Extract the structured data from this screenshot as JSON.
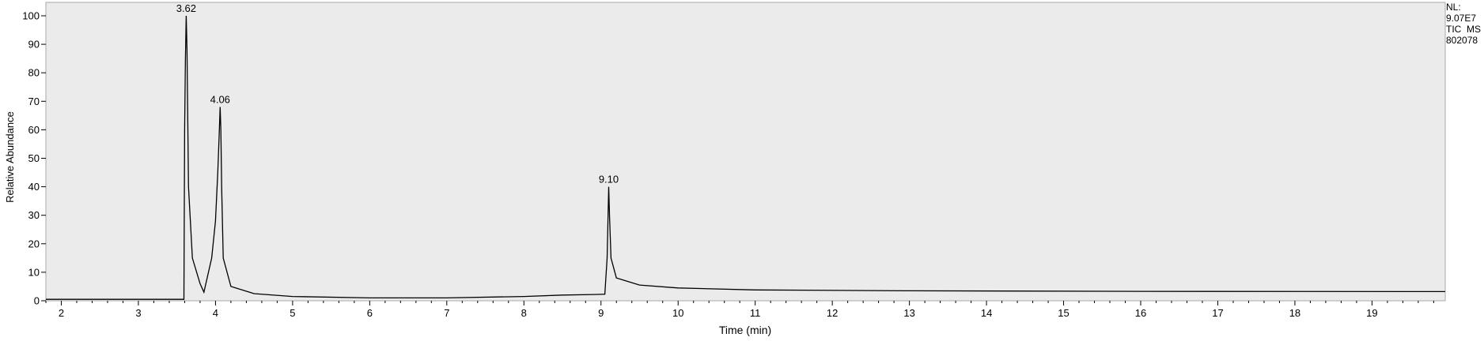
{
  "chart_data": {
    "type": "line",
    "title": "",
    "xlabel": "Time (min)",
    "ylabel": "Relative Abundance",
    "xlim": [
      1.8,
      19.95
    ],
    "ylim": [
      0,
      100
    ],
    "xticks": [
      2,
      3,
      4,
      5,
      6,
      7,
      8,
      9,
      10,
      11,
      12,
      13,
      14,
      15,
      16,
      17,
      18,
      19
    ],
    "yticks": [
      0,
      10,
      20,
      30,
      40,
      50,
      60,
      70,
      80,
      90,
      100
    ],
    "grid": false,
    "legend": "none",
    "line_color": "#000000",
    "background_color": "#ebebeb",
    "series": [
      {
        "x": [
          1.8,
          3.2,
          3.59,
          3.6,
          3.61,
          3.62,
          3.63,
          3.65,
          3.7,
          3.8,
          3.85,
          3.9,
          3.95,
          4.0,
          4.03,
          4.05,
          4.06,
          4.07,
          4.08,
          4.1,
          4.2,
          4.5,
          5.0,
          6.0,
          7.0,
          8.0,
          8.5,
          8.9,
          9.05,
          9.08,
          9.1,
          9.11,
          9.13,
          9.2,
          9.5,
          10.0,
          11.0,
          13.0,
          16.0,
          19.95
        ],
        "y": [
          0.5,
          0.5,
          0.5,
          60,
          85,
          100,
          88,
          40,
          15,
          6,
          3,
          9,
          15,
          28,
          45,
          60,
          68,
          60,
          40,
          15,
          5,
          2.5,
          1.5,
          1,
          1,
          1.5,
          2,
          2.2,
          2.3,
          15,
          40,
          30,
          15,
          8,
          5.5,
          4.5,
          3.8,
          3.5,
          3.3,
          3.2
        ]
      }
    ],
    "annotations": [
      {
        "x": 3.62,
        "y": 100,
        "text": "3.62"
      },
      {
        "x": 4.06,
        "y": 68,
        "text": "4.06"
      },
      {
        "x": 9.1,
        "y": 40,
        "text": "9.10"
      }
    ]
  },
  "info": {
    "nl_label": "NL:",
    "nl_value": "9.07E7",
    "trace_label": "TIC  MS",
    "file_id": "802078"
  }
}
